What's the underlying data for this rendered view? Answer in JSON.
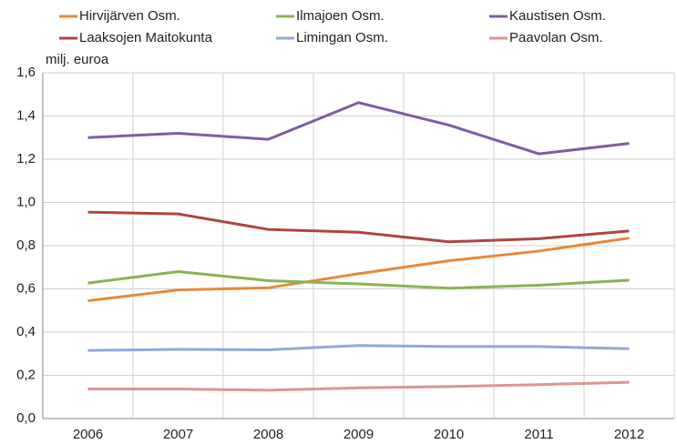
{
  "chart_data": {
    "type": "line",
    "y_label": "milj. euroa",
    "categories": [
      "2006",
      "2007",
      "2008",
      "2009",
      "2010",
      "2011",
      "2012"
    ],
    "series": [
      {
        "name": "Hirvijärven Osm.",
        "color": "#e8873a",
        "values": [
          0.545,
          0.595,
          0.605,
          0.67,
          0.73,
          0.775,
          0.835
        ]
      },
      {
        "name": "Ilmajoen Osm.",
        "color": "#8cb254",
        "values": [
          0.627,
          0.68,
          0.638,
          0.623,
          0.603,
          0.617,
          0.64
        ]
      },
      {
        "name": "Kaustisen Osm.",
        "color": "#7d5fa0",
        "values": [
          1.3,
          1.32,
          1.292,
          1.462,
          1.358,
          1.225,
          1.273
        ]
      },
      {
        "name": "Laaksojen Maitokunta",
        "color": "#b04440",
        "values": [
          0.955,
          0.947,
          0.875,
          0.862,
          0.818,
          0.832,
          0.868
        ]
      },
      {
        "name": "Limingan Osm.",
        "color": "#8fa9d6",
        "values": [
          0.315,
          0.32,
          0.318,
          0.338,
          0.333,
          0.333,
          0.323
        ]
      },
      {
        "name": "Paavolan Osm.",
        "color": "#d99694",
        "values": [
          0.137,
          0.137,
          0.131,
          0.142,
          0.148,
          0.157,
          0.168
        ]
      }
    ],
    "ylim": [
      0,
      1.6
    ],
    "yticks": [
      {
        "value": 0,
        "label": "0,0"
      },
      {
        "value": 0.2,
        "label": "0,2"
      },
      {
        "value": 0.4,
        "label": "0,4"
      },
      {
        "value": 0.6,
        "label": "0,6"
      },
      {
        "value": 0.8,
        "label": "0,8"
      },
      {
        "value": 1.0,
        "label": "1,0"
      },
      {
        "value": 1.2,
        "label": "1,2"
      },
      {
        "value": 1.4,
        "label": "1,4"
      },
      {
        "value": 1.6,
        "label": "1,6"
      }
    ],
    "grid": true,
    "legend": "top"
  }
}
